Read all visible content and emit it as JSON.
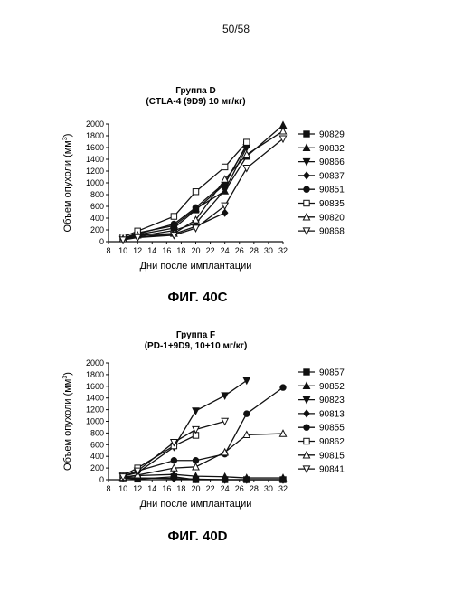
{
  "page_number": "50/58",
  "chart_data": [
    {
      "type": "line",
      "figure_label": "ФИГ. 40C",
      "title": "Группа D",
      "subtitle": "(CTLA-4 (9D9) 10 мг/кг)",
      "xlabel": "Дни после имплантации",
      "ylabel": "Объем опухоли (мм",
      "ylabel_sup": "3",
      "ylabel_end": ")",
      "xlim": [
        8,
        32
      ],
      "ylim": [
        0,
        2000
      ],
      "xticks": [
        "8",
        "10",
        "12",
        "14",
        "16",
        "18",
        "20",
        "22",
        "24",
        "26",
        "28",
        "30",
        "32"
      ],
      "yticks": [
        "0",
        "200",
        "400",
        "600",
        "800",
        "1000",
        "1200",
        "1400",
        "1600",
        "1800",
        "2000"
      ],
      "legend_position": "right",
      "grid": false,
      "series": [
        {
          "name": "90829",
          "marker": "square-filled",
          "x": [
            10,
            12,
            17,
            20,
            24,
            27
          ],
          "y": [
            60,
            120,
            230,
            540,
            980,
            1650
          ]
        },
        {
          "name": "90832",
          "marker": "triangle-up-filled",
          "x": [
            10,
            12,
            17,
            20,
            24,
            27,
            32
          ],
          "y": [
            50,
            150,
            270,
            560,
            860,
            1450,
            1980
          ]
        },
        {
          "name": "90866",
          "marker": "triangle-down-filled",
          "x": [
            10,
            12,
            17,
            20,
            24,
            27
          ],
          "y": [
            40,
            90,
            190,
            310,
            880,
            1600
          ]
        },
        {
          "name": "90837",
          "marker": "diamond-filled",
          "x": [
            10,
            12,
            17,
            20,
            24
          ],
          "y": [
            40,
            80,
            130,
            260,
            490
          ]
        },
        {
          "name": "90851",
          "marker": "circle-filled",
          "x": [
            10,
            12,
            17,
            20,
            24,
            27
          ],
          "y": [
            60,
            130,
            300,
            580,
            1000,
            1630
          ]
        },
        {
          "name": "90835",
          "marker": "square-open",
          "x": [
            10,
            12,
            17,
            20,
            24,
            27
          ],
          "y": [
            80,
            180,
            430,
            850,
            1270,
            1690
          ]
        },
        {
          "name": "90820",
          "marker": "triangle-up-open",
          "x": [
            10,
            12,
            17,
            20,
            24,
            27,
            32
          ],
          "y": [
            50,
            110,
            140,
            370,
            1060,
            1480,
            1880
          ]
        },
        {
          "name": "90868",
          "marker": "triangle-down-open",
          "x": [
            10,
            12,
            17,
            20,
            24,
            27,
            32
          ],
          "y": [
            30,
            70,
            110,
            230,
            610,
            1250,
            1750
          ]
        }
      ]
    },
    {
      "type": "line",
      "figure_label": "ФИГ. 40D",
      "title": "Группа F",
      "subtitle": "(PD-1+9D9, 10+10 мг/кг)",
      "xlabel": "Дни после имплантации",
      "ylabel": "Объем опухоли (мм",
      "ylabel_sup": "3",
      "ylabel_end": ")",
      "xlim": [
        8,
        32
      ],
      "ylim": [
        0,
        2000
      ],
      "xticks": [
        "8",
        "10",
        "12",
        "14",
        "16",
        "18",
        "20",
        "22",
        "24",
        "26",
        "28",
        "30",
        "32"
      ],
      "yticks": [
        "0",
        "200",
        "400",
        "600",
        "800",
        "1000",
        "1200",
        "1400",
        "1600",
        "1800",
        "2000"
      ],
      "legend_position": "right",
      "grid": false,
      "series": [
        {
          "name": "90857",
          "marker": "square-filled",
          "x": [
            10,
            12,
            17,
            20,
            24,
            27,
            32
          ],
          "y": [
            30,
            10,
            50,
            0,
            0,
            0,
            0
          ]
        },
        {
          "name": "90852",
          "marker": "triangle-up-filled",
          "x": [
            10,
            12,
            17,
            20,
            24,
            27,
            32
          ],
          "y": [
            40,
            70,
            90,
            60,
            50,
            30,
            30
          ]
        },
        {
          "name": "90823",
          "marker": "triangle-down-filled",
          "x": [
            10,
            12,
            17,
            20,
            24,
            27
          ],
          "y": [
            60,
            120,
            560,
            1180,
            1440,
            1700
          ]
        },
        {
          "name": "90813",
          "marker": "diamond-filled",
          "x": [
            10,
            12,
            17,
            20,
            24,
            27,
            32
          ],
          "y": [
            40,
            30,
            20,
            10,
            0,
            0,
            0
          ]
        },
        {
          "name": "90855",
          "marker": "circle-filled",
          "x": [
            10,
            12,
            17,
            20,
            24,
            27,
            32
          ],
          "y": [
            60,
            150,
            330,
            330,
            440,
            1130,
            1580
          ]
        },
        {
          "name": "90862",
          "marker": "square-open",
          "x": [
            10,
            12,
            17,
            20
          ],
          "y": [
            70,
            200,
            580,
            760
          ]
        },
        {
          "name": "90815",
          "marker": "triangle-up-open",
          "x": [
            10,
            12,
            17,
            20,
            24,
            27,
            32
          ],
          "y": [
            40,
            80,
            200,
            220,
            470,
            770,
            790
          ]
        },
        {
          "name": "90841",
          "marker": "triangle-down-open",
          "x": [
            10,
            12,
            17,
            20,
            24
          ],
          "y": [
            50,
            150,
            640,
            860,
            1000
          ]
        }
      ]
    }
  ]
}
